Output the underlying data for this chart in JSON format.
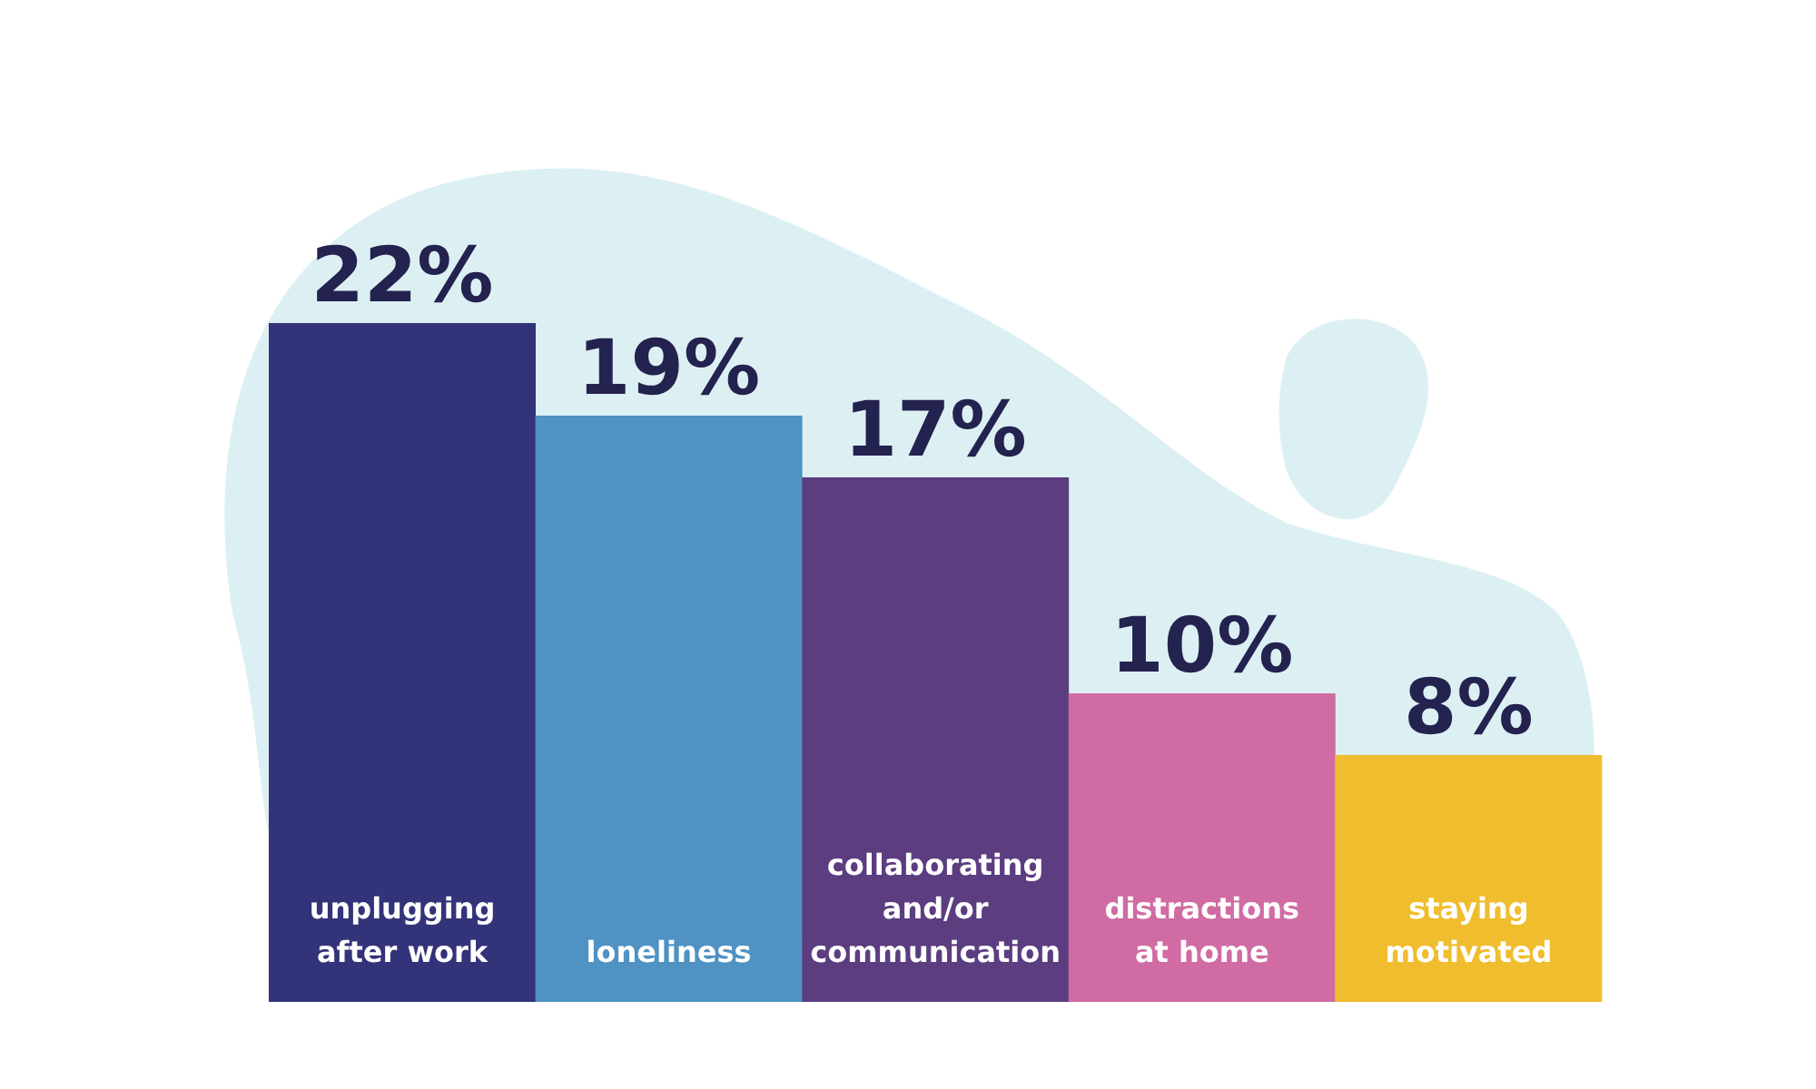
{
  "chart_data": {
    "type": "bar",
    "categories": [
      "unplugging after work",
      "loneliness",
      "collaborating and/or communication",
      "distractions at home",
      "staying motivated"
    ],
    "values": [
      22,
      19,
      17,
      10,
      8
    ],
    "value_labels": [
      "22%",
      "19%",
      "17%",
      "10%",
      "8%"
    ],
    "colors": [
      "#33337a",
      "#4f92c3",
      "#5b3d80",
      "#d06ca3",
      "#efbd2e"
    ]
  }
}
